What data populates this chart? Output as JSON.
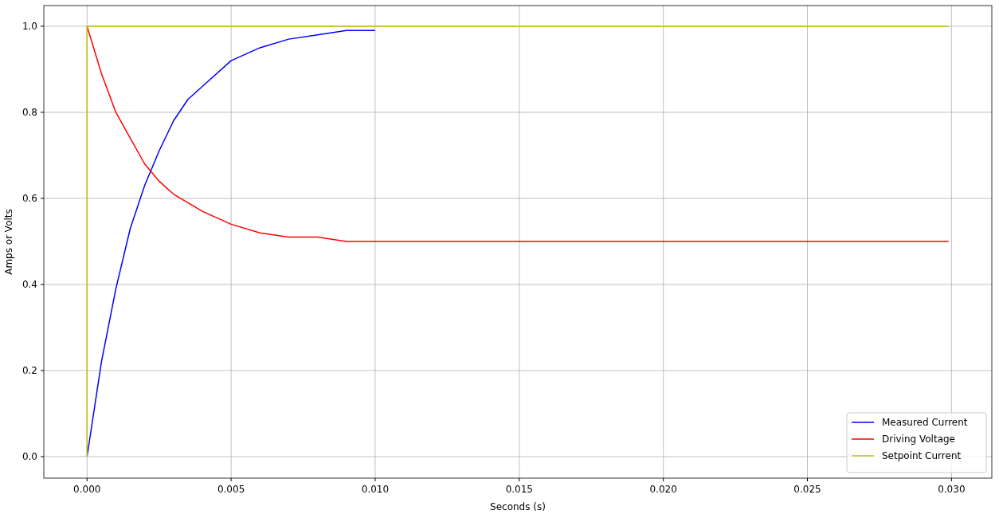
{
  "chart_data": {
    "type": "line",
    "xlabel": "Seconds (s)",
    "ylabel": "Amps or Volts",
    "xlim": [
      -0.0015,
      0.0314
    ],
    "ylim": [
      -0.05,
      1.048
    ],
    "xticks": [
      {
        "value": 0,
        "label": "0.000"
      },
      {
        "value": 0.005,
        "label": "0.005"
      },
      {
        "value": 0.01,
        "label": "0.010"
      },
      {
        "value": 0.015,
        "label": "0.015"
      },
      {
        "value": 0.02,
        "label": "0.020"
      },
      {
        "value": 0.025,
        "label": "0.025"
      },
      {
        "value": 0.03,
        "label": "0.030"
      }
    ],
    "yticks": [
      {
        "value": 0,
        "label": "0.0"
      },
      {
        "value": 0.2,
        "label": "0.2"
      },
      {
        "value": 0.4,
        "label": "0.4"
      },
      {
        "value": 0.6,
        "label": "0.6"
      },
      {
        "value": 0.8,
        "label": "0.8"
      },
      {
        "value": 1,
        "label": "1.0"
      }
    ],
    "grid": true,
    "legend": "bottom right",
    "line_style": "solid",
    "series": [
      {
        "name": "Measured Current",
        "color": "#0000ff",
        "x": [
          0,
          0.0005,
          0.001,
          0.0015,
          0.002,
          0.0025,
          0.003,
          0.0035,
          0.004,
          0.005,
          0.006,
          0.007,
          0.008,
          0.009,
          0.01
        ],
        "values": [
          0,
          0.22,
          0.39,
          0.53,
          0.63,
          0.71,
          0.78,
          0.83,
          0.86,
          0.92,
          0.95,
          0.97,
          0.98,
          0.99,
          0.99
        ]
      },
      {
        "name": "Driving Voltage",
        "color": "#ff0000",
        "x": [
          0,
          0.0005,
          0.001,
          0.0015,
          0.002,
          0.0025,
          0.003,
          0.0035,
          0.004,
          0.005,
          0.006,
          0.007,
          0.008,
          0.009,
          0.01,
          0.012,
          0.015,
          0.02,
          0.0299
        ],
        "values": [
          1.0,
          0.89,
          0.8,
          0.74,
          0.68,
          0.64,
          0.61,
          0.59,
          0.57,
          0.54,
          0.52,
          0.51,
          0.51,
          0.5,
          0.5,
          0.5,
          0.5,
          0.5,
          0.5
        ]
      },
      {
        "name": "Setpoint Current",
        "color": "#bfbf00",
        "x": [
          0,
          0,
          0.0299
        ],
        "values": [
          0,
          1,
          1
        ]
      }
    ]
  }
}
